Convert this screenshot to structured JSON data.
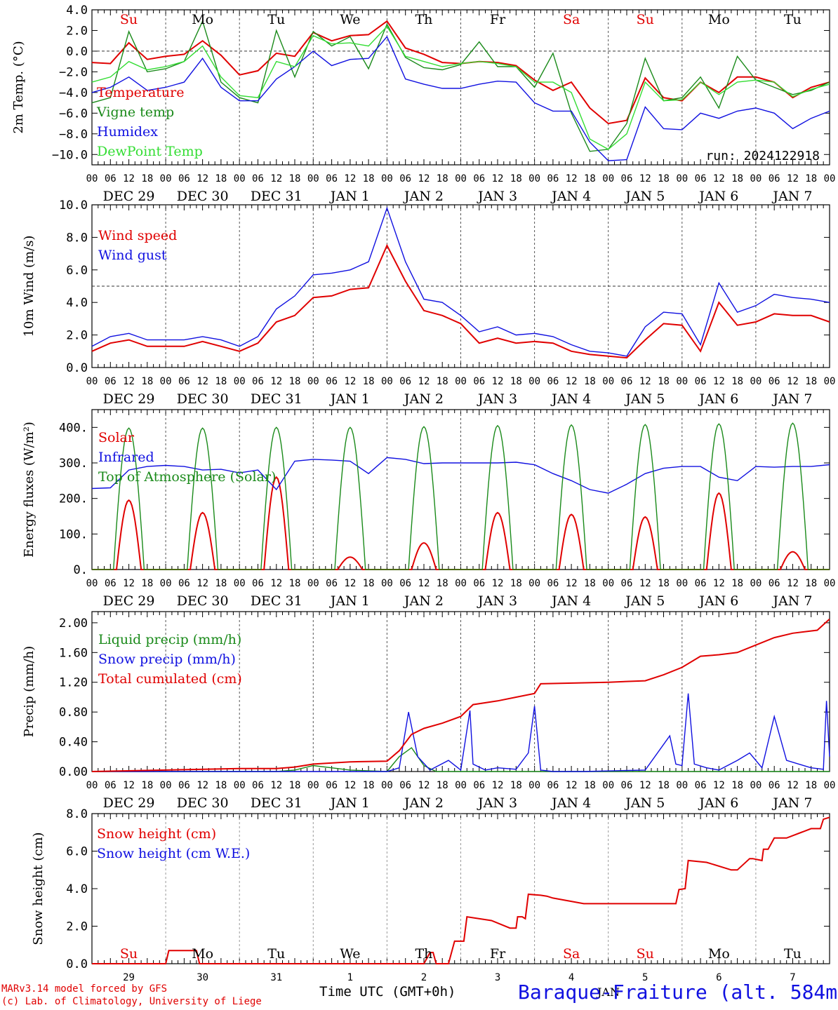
{
  "colors": {
    "red": "#e00000",
    "dark_green": "#1a8a1a",
    "blue": "#1010e0",
    "light_green": "#33dd33",
    "axis": "#000000",
    "grid": "#555555"
  },
  "footer": {
    "credit_line1": "MARv3.14 model forced by GFS",
    "credit_line2": "(c) Lab. of Climatology, University of Liege",
    "x_title": "Time UTC (GMT+0h)",
    "station": "Baraque-Fraiture (alt. 584m)",
    "month": "JAN"
  },
  "hours_labels": [
    "00",
    "06",
    "12",
    "18"
  ],
  "end_hour_label": "00",
  "date_labels": [
    "DEC 29",
    "DEC 30",
    "DEC 31",
    "JAN  1",
    "JAN  2",
    "JAN  3",
    "JAN  4",
    "JAN  5",
    "JAN  6",
    "JAN  7"
  ],
  "day_numbers": [
    "29",
    "30",
    "31",
    "1",
    "2",
    "3",
    "4",
    "5",
    "6",
    "7"
  ],
  "weekdays": [
    {
      "label": "Su",
      "weekend": true
    },
    {
      "label": "Mo",
      "weekend": false
    },
    {
      "label": "Tu",
      "weekend": false
    },
    {
      "label": "We",
      "weekend": false
    },
    {
      "label": "Th",
      "weekend": false
    },
    {
      "label": "Fr",
      "weekend": false
    },
    {
      "label": "Sa",
      "weekend": true
    },
    {
      "label": "Su",
      "weekend": true
    },
    {
      "label": "Mo",
      "weekend": false
    },
    {
      "label": "Tu",
      "weekend": false
    }
  ],
  "chart_data": [
    {
      "type": "line",
      "ylabel": "2m Temp. (°C)",
      "ylim": [
        -11,
        4.0
      ],
      "yticks": [
        -10.0,
        -8.0,
        -6.0,
        -4.0,
        -2.0,
        0.0,
        2.0,
        4.0
      ],
      "ytick_labels": [
        "−10.0",
        "−8.0",
        "−6.0",
        "−4.0",
        "−2.0",
        "0.0",
        "2.0",
        "4.0"
      ],
      "ref_line": 0.0,
      "annotation": "run: 2024122918",
      "xlim_hours": [
        0,
        240
      ],
      "series": [
        {
          "name": "Temperature",
          "color": "red",
          "x": [
            0,
            6,
            12,
            18,
            24,
            30,
            36,
            42,
            48,
            54,
            60,
            66,
            72,
            78,
            84,
            90,
            96,
            102,
            108,
            114,
            120,
            126,
            132,
            138,
            144,
            150,
            156,
            162,
            168,
            174,
            180,
            186,
            192,
            198,
            204,
            210,
            216,
            222,
            228,
            234,
            240
          ],
          "y": [
            -1.1,
            -1.2,
            0.8,
            -0.8,
            -0.5,
            -0.3,
            1.0,
            -0.4,
            -2.3,
            -1.9,
            -0.2,
            -0.5,
            1.8,
            1.0,
            1.5,
            1.6,
            2.9,
            0.3,
            -0.3,
            -1.1,
            -1.2,
            -1.0,
            -1.1,
            -1.4,
            -2.8,
            -3.8,
            -3.0,
            -5.5,
            -7.0,
            -6.7,
            -2.6,
            -4.5,
            -4.8,
            -3.0,
            -4.0,
            -2.5,
            -2.5,
            -3.0,
            -4.5,
            -3.5,
            -3.0
          ]
        },
        {
          "name": "Vigne temp",
          "color": "dark_green",
          "x": [
            0,
            6,
            12,
            18,
            24,
            30,
            36,
            42,
            48,
            54,
            60,
            66,
            72,
            78,
            84,
            90,
            96,
            102,
            108,
            114,
            120,
            126,
            132,
            138,
            144,
            150,
            156,
            162,
            168,
            174,
            180,
            186,
            192,
            198,
            204,
            210,
            216,
            222,
            228,
            234,
            240
          ],
          "y": [
            -5.0,
            -4.5,
            1.9,
            -2.0,
            -1.7,
            -1.0,
            2.9,
            -3.0,
            -4.5,
            -5.0,
            2.0,
            -2.5,
            1.9,
            0.5,
            1.4,
            -1.7,
            2.6,
            -0.6,
            -1.6,
            -1.8,
            -1.3,
            0.9,
            -1.5,
            -1.5,
            -3.5,
            -0.2,
            -6.0,
            -9.7,
            -9.5,
            -7.0,
            -0.7,
            -4.8,
            -4.5,
            -2.5,
            -5.5,
            -0.5,
            -2.8,
            -3.5,
            -4.2,
            -3.8,
            -3.0
          ]
        },
        {
          "name": "Humidex",
          "color": "blue",
          "x": [
            0,
            6,
            12,
            18,
            24,
            30,
            36,
            42,
            48,
            54,
            60,
            66,
            72,
            78,
            84,
            90,
            96,
            102,
            108,
            114,
            120,
            126,
            132,
            138,
            144,
            150,
            156,
            162,
            168,
            174,
            180,
            186,
            192,
            198,
            204,
            210,
            216,
            222,
            228,
            234,
            240
          ],
          "y": [
            -4.0,
            -3.5,
            -2.5,
            -3.8,
            -3.5,
            -3.0,
            -0.7,
            -3.5,
            -4.8,
            -4.8,
            -2.7,
            -1.5,
            0.0,
            -1.4,
            -0.8,
            -0.7,
            1.4,
            -2.7,
            -3.2,
            -3.6,
            -3.6,
            -3.2,
            -2.9,
            -3.0,
            -5.0,
            -5.8,
            -5.8,
            -8.8,
            -10.6,
            -10.5,
            -5.4,
            -7.5,
            -7.6,
            -6.0,
            -6.5,
            -5.8,
            -5.5,
            -6.0,
            -7.5,
            -6.5,
            -5.8
          ]
        },
        {
          "name": "DewPoint Temp",
          "color": "light_green",
          "x": [
            0,
            6,
            12,
            18,
            24,
            30,
            36,
            42,
            48,
            54,
            60,
            66,
            72,
            78,
            84,
            90,
            96,
            102,
            108,
            114,
            120,
            126,
            132,
            138,
            144,
            150,
            156,
            162,
            168,
            174,
            180,
            186,
            192,
            198,
            204,
            210,
            216,
            222,
            228,
            234,
            240
          ],
          "y": [
            -3.0,
            -2.5,
            -1.0,
            -1.8,
            -1.5,
            -1.0,
            0.5,
            -2.5,
            -4.3,
            -4.5,
            -1.0,
            -1.5,
            1.5,
            0.7,
            0.8,
            0.5,
            2.4,
            -0.5,
            -1.0,
            -1.5,
            -1.2,
            -1.0,
            -1.2,
            -1.5,
            -3.0,
            -3.0,
            -4.0,
            -8.5,
            -9.5,
            -8.0,
            -3.0,
            -4.8,
            -4.7,
            -3.0,
            -4.2,
            -3.0,
            -2.8,
            -3.0,
            -4.4,
            -3.7,
            -3.2
          ]
        }
      ]
    },
    {
      "type": "line",
      "ylabel": "10m Wind (m/s)",
      "ylim": [
        0,
        10.0
      ],
      "yticks": [
        0.0,
        2.0,
        4.0,
        6.0,
        8.0,
        10.0
      ],
      "ytick_labels": [
        "0.0",
        "2.0",
        "4.0",
        "6.0",
        "8.0",
        "10.0"
      ],
      "ref_line": 5.0,
      "xlim_hours": [
        0,
        240
      ],
      "series": [
        {
          "name": "Wind speed",
          "color": "red",
          "x": [
            0,
            6,
            12,
            18,
            24,
            30,
            36,
            42,
            48,
            54,
            60,
            66,
            72,
            78,
            84,
            90,
            96,
            102,
            108,
            114,
            120,
            126,
            132,
            138,
            144,
            150,
            156,
            162,
            168,
            174,
            180,
            186,
            192,
            198,
            204,
            210,
            216,
            222,
            228,
            234,
            240
          ],
          "y": [
            1.0,
            1.5,
            1.7,
            1.3,
            1.3,
            1.3,
            1.6,
            1.3,
            1.0,
            1.5,
            2.8,
            3.2,
            4.3,
            4.4,
            4.8,
            4.9,
            7.5,
            5.3,
            3.5,
            3.2,
            2.7,
            1.5,
            1.8,
            1.5,
            1.6,
            1.5,
            1.0,
            0.8,
            0.7,
            0.6,
            1.7,
            2.7,
            2.6,
            1.0,
            4.0,
            2.6,
            2.8,
            3.3,
            3.2,
            3.2,
            2.8
          ]
        },
        {
          "name": "Wind gust",
          "color": "blue",
          "x": [
            0,
            6,
            12,
            18,
            24,
            30,
            36,
            42,
            48,
            54,
            60,
            66,
            72,
            78,
            84,
            90,
            96,
            102,
            108,
            114,
            120,
            126,
            132,
            138,
            144,
            150,
            156,
            162,
            168,
            174,
            180,
            186,
            192,
            198,
            204,
            210,
            216,
            222,
            228,
            234,
            240
          ],
          "y": [
            1.3,
            1.9,
            2.1,
            1.7,
            1.7,
            1.7,
            1.9,
            1.7,
            1.3,
            1.9,
            3.6,
            4.4,
            5.7,
            5.8,
            6.0,
            6.5,
            9.8,
            6.5,
            4.2,
            4.0,
            3.2,
            2.2,
            2.5,
            2.0,
            2.1,
            1.9,
            1.4,
            1.0,
            0.9,
            0.7,
            2.5,
            3.4,
            3.3,
            1.4,
            5.2,
            3.4,
            3.8,
            4.5,
            4.3,
            4.2,
            4.0
          ]
        }
      ]
    },
    {
      "type": "line",
      "ylabel": "Energy fluxes (W/m²)",
      "ylim": [
        0,
        450
      ],
      "yticks": [
        0,
        100,
        200,
        300,
        400
      ],
      "ytick_labels": [
        "0.",
        "100.",
        "200.",
        "300.",
        "400."
      ],
      "xlim_hours": [
        0,
        240
      ],
      "series": [
        {
          "name": "Solar",
          "color": "red",
          "daily_peak_values": [
            195,
            160,
            260,
            35,
            75,
            160,
            155,
            148,
            215,
            50
          ]
        },
        {
          "name": "Infrared",
          "color": "blue",
          "x": [
            0,
            6,
            12,
            18,
            24,
            30,
            36,
            42,
            48,
            54,
            60,
            66,
            72,
            78,
            84,
            90,
            96,
            102,
            108,
            114,
            120,
            126,
            132,
            138,
            144,
            150,
            156,
            162,
            168,
            174,
            180,
            186,
            192,
            198,
            204,
            210,
            216,
            222,
            228,
            234,
            240
          ],
          "y": [
            228,
            230,
            280,
            290,
            293,
            290,
            280,
            282,
            272,
            280,
            225,
            305,
            310,
            308,
            305,
            270,
            315,
            310,
            298,
            300,
            300,
            300,
            300,
            302,
            295,
            270,
            250,
            225,
            215,
            240,
            270,
            285,
            290,
            290,
            260,
            250,
            290,
            288,
            290,
            290,
            295
          ]
        },
        {
          "name": "Top of Atmosphere (Solar)",
          "color": "dark_green",
          "daily_peak_values": [
            398,
            398,
            400,
            400,
            402,
            405,
            407,
            408,
            410,
            412
          ]
        }
      ]
    },
    {
      "type": "line",
      "ylabel": "Precip (mm/h)",
      "ylim": [
        0,
        2.15
      ],
      "yticks": [
        0.0,
        0.4,
        0.8,
        1.2,
        1.6,
        2.0
      ],
      "ytick_labels": [
        "0.00",
        "0.40",
        "0.80",
        "1.20",
        "1.60",
        "2.00"
      ],
      "xlim_hours": [
        0,
        240
      ],
      "series": [
        {
          "name": "Liquid precip (mm/h)",
          "color": "dark_green",
          "x": [
            0,
            60,
            66,
            72,
            84,
            96,
            100,
            104,
            108,
            112,
            120,
            240
          ],
          "y": [
            0,
            0,
            0.02,
            0.08,
            0.02,
            0,
            0.2,
            0.32,
            0.08,
            0,
            0,
            0
          ]
        },
        {
          "name": "Snow precip (mm/h)",
          "color": "blue",
          "x": [
            0,
            96,
            100,
            103,
            106,
            110,
            116,
            120,
            123,
            124,
            128,
            132,
            138,
            142,
            144,
            146,
            150,
            160,
            180,
            188,
            190,
            192,
            194,
            196,
            200,
            204,
            210,
            214,
            218,
            222,
            226,
            230,
            234,
            238,
            239,
            240
          ],
          "y": [
            0,
            0,
            0.05,
            0.8,
            0.2,
            0.02,
            0.15,
            0.02,
            0.82,
            0.1,
            0.02,
            0.05,
            0.03,
            0.25,
            0.88,
            0.02,
            0,
            0,
            0.02,
            0.48,
            0.1,
            0.08,
            1.05,
            0.1,
            0.05,
            0.02,
            0.15,
            0.25,
            0.05,
            0.74,
            0.15,
            0.1,
            0.05,
            0.03,
            0.95,
            0.2
          ]
        },
        {
          "name": "Total cumulated (cm)",
          "color": "red",
          "x": [
            0,
            24,
            48,
            60,
            66,
            72,
            84,
            96,
            100,
            104,
            108,
            114,
            120,
            124,
            132,
            138,
            144,
            146,
            168,
            180,
            186,
            192,
            198,
            204,
            210,
            216,
            222,
            228,
            236,
            240
          ],
          "y": [
            0,
            0.02,
            0.04,
            0.04,
            0.06,
            0.1,
            0.13,
            0.14,
            0.28,
            0.5,
            0.58,
            0.65,
            0.74,
            0.9,
            0.95,
            1.0,
            1.05,
            1.18,
            1.2,
            1.22,
            1.3,
            1.4,
            1.55,
            1.57,
            1.6,
            1.7,
            1.8,
            1.86,
            1.9,
            2.05
          ]
        }
      ]
    },
    {
      "type": "line",
      "ylabel": "Snow height (cm)",
      "ylim": [
        0,
        8.0
      ],
      "yticks": [
        0.0,
        2.0,
        4.0,
        6.0,
        8.0
      ],
      "ytick_labels": [
        "0.0",
        "2.0",
        "4.0",
        "6.0",
        "8.0"
      ],
      "xlim_hours": [
        0,
        240
      ],
      "series": [
        {
          "name": "Snow height (cm)",
          "color": "red",
          "x": [
            0,
            24,
            25,
            34,
            35,
            60,
            96,
            108,
            110,
            111,
            112,
            116,
            118,
            120,
            121,
            122,
            130,
            136,
            138,
            138.5,
            140,
            141,
            142,
            146,
            148,
            150,
            160,
            168,
            180,
            190,
            191,
            193,
            194,
            200,
            208,
            210,
            214,
            215,
            218,
            218.5,
            220,
            222,
            224,
            226,
            234,
            237,
            238,
            240
          ],
          "y": [
            0,
            0,
            0.7,
            0.7,
            0,
            0,
            0,
            0,
            0.6,
            0.6,
            0,
            0,
            1.2,
            1.2,
            1.2,
            2.5,
            2.3,
            1.9,
            1.9,
            2.5,
            2.5,
            2.4,
            3.7,
            3.65,
            3.6,
            3.5,
            3.2,
            3.2,
            3.2,
            3.2,
            3.95,
            4.0,
            5.5,
            5.4,
            5.0,
            5.0,
            5.6,
            5.6,
            5.5,
            6.1,
            6.1,
            6.7,
            6.7,
            6.7,
            7.2,
            7.2,
            7.7,
            7.8
          ]
        },
        {
          "name": "Snow height (cm W.E.)",
          "color": "blue",
          "x": [],
          "y": []
        }
      ]
    }
  ]
}
